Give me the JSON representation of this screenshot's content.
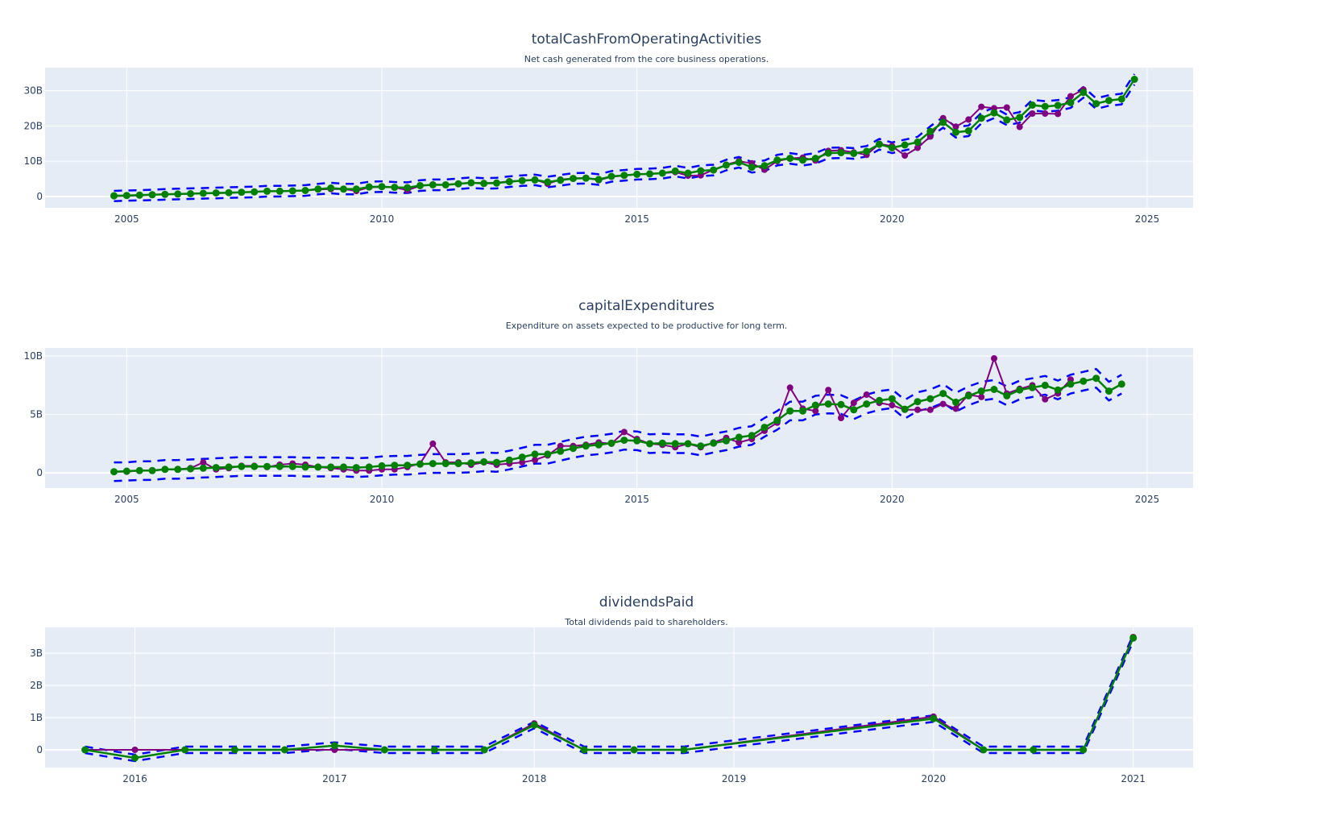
{
  "colors": {
    "plot_bg": "#e5ecf6",
    "grid": "#ffffff",
    "actual": "#800080",
    "fitted": "#008000",
    "band": "#0000ff",
    "text": "#2a3f5f"
  },
  "chart_data": [
    {
      "type": "line",
      "title": "totalCashFromOperatingActivities",
      "subtitle": "Net cash generated from the core business operations.",
      "xlabel": "",
      "ylabel": "",
      "x_ticks": [
        2005,
        2010,
        2015,
        2020,
        2025
      ],
      "x_tick_labels": [
        "2005",
        "2010",
        "2015",
        "2020",
        "2025"
      ],
      "y_ticks": [
        0,
        10,
        20,
        30
      ],
      "y_tick_labels": [
        "0",
        "10B",
        "20B",
        "30B"
      ],
      "xlim": [
        2003.4,
        2025.9
      ],
      "ylim": [
        -3.2,
        36.5
      ],
      "grid": true,
      "units": "billions",
      "series": [
        {
          "name": "actual",
          "x_start": 2004.75,
          "x_step": 0.25,
          "values": [
            0.1,
            0.2,
            0.3,
            0.5,
            0.6,
            0.7,
            0.8,
            0.9,
            1.0,
            1.0,
            1.2,
            1.3,
            1.5,
            1.5,
            1.6,
            1.7,
            2.0,
            2.1,
            2.1,
            1.6,
            2.6,
            2.7,
            2.6,
            1.8,
            3.0,
            3.4,
            3.3,
            3.6,
            3.9,
            3.8,
            3.9,
            4.3,
            4.5,
            4.8,
            3.6,
            4.8,
            5.1,
            5.3,
            4.6,
            5.6,
            5.9,
            6.3,
            6.4,
            6.6,
            6.9,
            5.9,
            6.0,
            7.6,
            9.0,
            10.0,
            9.4,
            7.6,
            10.0,
            10.8,
            11.0,
            10.2,
            12.9,
            13.1,
            12.5,
            11.8,
            14.9,
            14.3,
            11.6,
            13.8,
            17.0,
            22.2,
            19.8,
            21.8,
            25.4,
            25.0,
            25.2,
            19.7,
            23.5,
            23.5,
            23.4,
            28.4,
            30.3,
            null,
            null,
            null,
            null
          ]
        },
        {
          "name": "fitted",
          "x_start": 2004.75,
          "x_step": 0.25,
          "values": [
            0.2,
            0.3,
            0.4,
            0.5,
            0.6,
            0.7,
            0.8,
            0.9,
            1.0,
            1.1,
            1.2,
            1.3,
            1.5,
            1.5,
            1.6,
            1.7,
            2.1,
            2.4,
            2.1,
            2.1,
            2.7,
            2.8,
            2.6,
            2.5,
            3.1,
            3.3,
            3.3,
            3.6,
            3.9,
            3.7,
            3.8,
            4.2,
            4.5,
            4.7,
            4.1,
            4.6,
            5.1,
            5.2,
            4.8,
            5.7,
            6.0,
            6.3,
            6.4,
            6.6,
            7.2,
            6.6,
            7.3,
            7.5,
            8.9,
            9.7,
            8.3,
            8.7,
            10.3,
            10.8,
            10.3,
            10.8,
            12.3,
            12.4,
            12.2,
            12.8,
            14.8,
            13.8,
            14.6,
            15.4,
            18.4,
            21.0,
            18.2,
            18.6,
            22.2,
            23.7,
            21.7,
            22.4,
            25.9,
            25.5,
            25.8,
            26.6,
            29.5,
            26.3,
            27.2,
            27.6,
            33.2
          ]
        },
        {
          "name": "upper",
          "x_start": 2004.75,
          "x_step": 0.25,
          "values": [
            1.6,
            1.7,
            1.8,
            1.9,
            2.1,
            2.2,
            2.3,
            2.4,
            2.5,
            2.6,
            2.7,
            2.8,
            3.0,
            3.0,
            3.1,
            3.2,
            3.6,
            3.9,
            3.6,
            3.6,
            4.2,
            4.3,
            4.1,
            4.0,
            4.6,
            4.8,
            4.8,
            5.1,
            5.4,
            5.2,
            5.3,
            5.7,
            6.0,
            6.2,
            5.6,
            6.1,
            6.6,
            6.7,
            6.3,
            7.2,
            7.5,
            7.8,
            7.9,
            8.1,
            8.7,
            8.1,
            8.8,
            9.0,
            10.4,
            11.2,
            9.8,
            10.2,
            11.8,
            12.3,
            11.8,
            12.3,
            13.8,
            13.9,
            13.7,
            14.3,
            16.3,
            15.3,
            16.1,
            16.9,
            19.9,
            22.5,
            19.7,
            20.1,
            23.7,
            25.2,
            23.2,
            23.9,
            27.4,
            27.0,
            27.3,
            28.1,
            31.0,
            27.8,
            28.7,
            29.1,
            34.7
          ]
        },
        {
          "name": "lower",
          "x_start": 2004.75,
          "x_step": 0.25,
          "values": [
            -1.3,
            -1.2,
            -1.1,
            -1.0,
            -0.9,
            -0.8,
            -0.7,
            -0.6,
            -0.5,
            -0.4,
            -0.3,
            -0.2,
            0.0,
            0.0,
            0.1,
            0.2,
            0.6,
            0.9,
            0.6,
            0.6,
            1.2,
            1.3,
            1.1,
            1.0,
            1.6,
            1.8,
            1.8,
            2.1,
            2.4,
            2.2,
            2.3,
            2.7,
            3.0,
            3.2,
            2.6,
            3.1,
            3.6,
            3.7,
            3.3,
            4.2,
            4.5,
            4.8,
            4.9,
            5.1,
            5.7,
            5.1,
            5.8,
            6.0,
            7.4,
            8.2,
            6.8,
            7.2,
            8.8,
            9.3,
            8.8,
            9.3,
            10.8,
            10.9,
            10.7,
            11.3,
            13.3,
            12.3,
            13.1,
            13.9,
            16.9,
            19.5,
            16.7,
            17.1,
            20.7,
            22.2,
            20.2,
            20.9,
            24.4,
            24.0,
            24.3,
            25.1,
            28.0,
            24.8,
            25.7,
            26.1,
            31.7
          ]
        }
      ]
    },
    {
      "type": "line",
      "title": "capitalExpenditures",
      "subtitle": "Expenditure on assets expected to be productive for long term.",
      "xlabel": "",
      "ylabel": "",
      "x_ticks": [
        2005,
        2010,
        2015,
        2020,
        2025
      ],
      "x_tick_labels": [
        "2005",
        "2010",
        "2015",
        "2020",
        "2025"
      ],
      "y_ticks": [
        0,
        5,
        10
      ],
      "y_tick_labels": [
        "0",
        "5B",
        "10B"
      ],
      "xlim": [
        2003.4,
        2025.9
      ],
      "ylim": [
        -1.3,
        10.7
      ],
      "grid": true,
      "units": "billions",
      "series": [
        {
          "name": "actual",
          "x_start": 2004.75,
          "x_step": 0.25,
          "values": [
            0.1,
            0.1,
            0.2,
            0.2,
            0.3,
            0.3,
            0.4,
            0.9,
            0.3,
            0.4,
            0.6,
            0.6,
            0.5,
            0.7,
            0.8,
            0.7,
            0.5,
            0.4,
            0.3,
            0.2,
            0.2,
            0.3,
            0.3,
            0.5,
            0.8,
            2.5,
            0.9,
            0.9,
            0.7,
            0.9,
            0.7,
            0.8,
            0.9,
            1.1,
            1.5,
            2.3,
            2.3,
            2.4,
            2.6,
            2.5,
            3.5,
            2.9,
            2.5,
            2.4,
            2.2,
            2.5,
            2.2,
            2.6,
            3.0,
            2.6,
            2.9,
            3.6,
            4.3,
            7.3,
            5.5,
            5.3,
            7.1,
            4.7,
            6.0,
            6.7,
            6.0,
            5.8,
            5.4,
            5.4,
            5.4,
            5.9,
            5.5,
            6.7,
            6.5,
            9.8,
            6.8,
            7.2,
            7.5,
            6.3,
            6.8,
            8.0,
            null,
            null,
            null,
            null
          ]
        },
        {
          "name": "fitted",
          "x_start": 2004.75,
          "x_step": 0.25,
          "values": [
            0.1,
            0.15,
            0.2,
            0.2,
            0.3,
            0.3,
            0.35,
            0.4,
            0.45,
            0.5,
            0.55,
            0.55,
            0.55,
            0.55,
            0.55,
            0.5,
            0.5,
            0.5,
            0.5,
            0.45,
            0.5,
            0.6,
            0.65,
            0.65,
            0.75,
            0.8,
            0.8,
            0.8,
            0.85,
            0.95,
            0.9,
            1.1,
            1.35,
            1.6,
            1.6,
            1.85,
            2.1,
            2.3,
            2.4,
            2.55,
            2.8,
            2.75,
            2.5,
            2.55,
            2.5,
            2.5,
            2.3,
            2.55,
            2.75,
            3.05,
            3.2,
            3.9,
            4.5,
            5.3,
            5.3,
            5.8,
            5.9,
            5.85,
            5.4,
            5.9,
            6.2,
            6.35,
            5.45,
            6.1,
            6.35,
            6.8,
            6.05,
            6.6,
            7.0,
            7.15,
            6.6,
            7.1,
            7.3,
            7.5,
            7.1,
            7.6,
            7.85,
            8.1,
            7.0,
            7.6
          ]
        },
        {
          "name": "upper",
          "x_start": 2004.75,
          "x_step": 0.25,
          "values": [
            0.9,
            0.9,
            1.0,
            1.0,
            1.1,
            1.1,
            1.15,
            1.2,
            1.25,
            1.3,
            1.35,
            1.35,
            1.35,
            1.35,
            1.35,
            1.3,
            1.3,
            1.3,
            1.3,
            1.25,
            1.3,
            1.4,
            1.45,
            1.45,
            1.55,
            1.6,
            1.6,
            1.6,
            1.65,
            1.75,
            1.7,
            1.9,
            2.15,
            2.4,
            2.4,
            2.65,
            2.9,
            3.1,
            3.2,
            3.35,
            3.6,
            3.55,
            3.3,
            3.35,
            3.3,
            3.3,
            3.1,
            3.35,
            3.55,
            3.85,
            4.0,
            4.7,
            5.3,
            6.1,
            6.1,
            6.6,
            6.7,
            6.65,
            6.2,
            6.7,
            7.0,
            7.15,
            6.25,
            6.9,
            7.15,
            7.6,
            6.85,
            7.4,
            7.8,
            7.95,
            7.4,
            7.9,
            8.1,
            8.3,
            7.9,
            8.4,
            8.65,
            8.9,
            7.8,
            8.4
          ]
        },
        {
          "name": "lower",
          "x_start": 2004.75,
          "x_step": 0.25,
          "values": [
            -0.7,
            -0.65,
            -0.6,
            -0.6,
            -0.5,
            -0.5,
            -0.45,
            -0.4,
            -0.35,
            -0.3,
            -0.25,
            -0.25,
            -0.25,
            -0.25,
            -0.25,
            -0.3,
            -0.3,
            -0.3,
            -0.3,
            -0.35,
            -0.3,
            -0.2,
            -0.15,
            -0.15,
            -0.05,
            0.0,
            0.0,
            0.0,
            0.05,
            0.15,
            0.1,
            0.3,
            0.55,
            0.8,
            0.8,
            1.05,
            1.3,
            1.5,
            1.6,
            1.75,
            2.0,
            1.95,
            1.7,
            1.75,
            1.7,
            1.7,
            1.5,
            1.75,
            1.95,
            2.25,
            2.4,
            3.1,
            3.7,
            4.5,
            4.5,
            5.0,
            5.1,
            5.05,
            4.6,
            5.1,
            5.4,
            5.55,
            4.65,
            5.3,
            5.55,
            6.0,
            5.25,
            5.8,
            6.2,
            6.35,
            5.8,
            6.3,
            6.5,
            6.7,
            6.3,
            6.8,
            7.05,
            7.3,
            6.2,
            6.8
          ]
        }
      ]
    },
    {
      "type": "line",
      "title": "dividendsPaid",
      "subtitle": "Total dividends paid to shareholders.",
      "xlabel": "",
      "ylabel": "",
      "x_ticks": [
        2016,
        2017,
        2018,
        2019,
        2020,
        2021
      ],
      "x_tick_labels": [
        "2016",
        "2017",
        "2018",
        "2019",
        "2020",
        "2021"
      ],
      "y_ticks": [
        0,
        1,
        2,
        3
      ],
      "y_tick_labels": [
        "0",
        "1B",
        "2B",
        "3B"
      ],
      "xlim": [
        2015.55,
        2021.3
      ],
      "ylim": [
        -0.55,
        3.8
      ],
      "grid": true,
      "units": "billions",
      "series": [
        {
          "name": "actual",
          "x": [
            2015.75,
            2016.0,
            2016.25,
            2016.5,
            2016.75,
            2017.0,
            2017.25,
            2017.5,
            2017.75,
            2018.0,
            2018.25,
            2018.5,
            2018.75,
            2020.0,
            2020.25,
            2020.5,
            2020.75,
            2021.0
          ],
          "values": [
            0.0,
            0.0,
            0.0,
            0.0,
            0.0,
            0.0,
            0.0,
            0.0,
            0.0,
            0.82,
            0.0,
            0.0,
            0.0,
            1.03,
            0.0,
            0.0,
            0.0,
            3.5
          ]
        },
        {
          "name": "fitted",
          "x": [
            2015.75,
            2016.0,
            2016.25,
            2016.5,
            2016.75,
            2017.0,
            2017.25,
            2017.5,
            2017.75,
            2018.0,
            2018.25,
            2018.5,
            2018.75,
            2020.0,
            2020.25,
            2020.5,
            2020.75,
            2021.0
          ],
          "values": [
            0.0,
            -0.25,
            0.0,
            0.0,
            0.0,
            0.13,
            0.0,
            0.0,
            0.0,
            0.77,
            0.0,
            0.0,
            0.0,
            0.97,
            0.0,
            0.0,
            0.0,
            3.47
          ]
        },
        {
          "name": "upper",
          "x": [
            2015.75,
            2016.0,
            2016.25,
            2016.5,
            2016.75,
            2017.0,
            2017.25,
            2017.5,
            2017.75,
            2018.0,
            2018.25,
            2018.5,
            2018.75,
            2020.0,
            2020.25,
            2020.5,
            2020.75,
            2021.0
          ],
          "values": [
            0.1,
            -0.15,
            0.1,
            0.1,
            0.1,
            0.23,
            0.1,
            0.1,
            0.1,
            0.87,
            0.1,
            0.1,
            0.1,
            1.07,
            0.1,
            0.1,
            0.1,
            3.57
          ]
        },
        {
          "name": "lower",
          "x": [
            2015.75,
            2016.0,
            2016.25,
            2016.5,
            2016.75,
            2017.0,
            2017.25,
            2017.5,
            2017.75,
            2018.0,
            2018.25,
            2018.5,
            2018.75,
            2020.0,
            2020.25,
            2020.5,
            2020.75,
            2021.0
          ],
          "values": [
            -0.1,
            -0.35,
            -0.1,
            -0.1,
            -0.1,
            0.03,
            -0.1,
            -0.1,
            -0.1,
            0.67,
            -0.1,
            -0.1,
            -0.1,
            0.87,
            -0.1,
            -0.1,
            -0.1,
            3.37
          ]
        }
      ]
    }
  ]
}
